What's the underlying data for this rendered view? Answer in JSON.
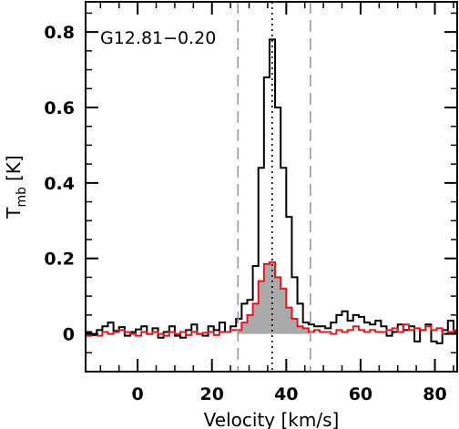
{
  "chart_data": {
    "type": "line",
    "annotation": "G12.81−0.20",
    "xlabel": "Velocity [km/s]",
    "ylabel_main": "T",
    "ylabel_sub": "mb",
    "ylabel_unit": "[K]",
    "xlim": [
      -14,
      86
    ],
    "ylim": [
      -0.1,
      0.88
    ],
    "x_ticks": [
      {
        "value": 0,
        "label": "0"
      },
      {
        "value": 20,
        "label": "20"
      },
      {
        "value": 40,
        "label": "40"
      },
      {
        "value": 60,
        "label": "60"
      },
      {
        "value": 80,
        "label": "80"
      }
    ],
    "y_ticks": [
      {
        "value": 0,
        "label": "0"
      },
      {
        "value": 0.2,
        "label": "0.2"
      },
      {
        "value": 0.4,
        "label": "0.4"
      },
      {
        "value": 0.6,
        "label": "0.6"
      },
      {
        "value": 0.8,
        "label": "0.8"
      }
    ],
    "x_minor_step": 5,
    "y_minor_step": 0.05,
    "vlines": [
      {
        "x": 27,
        "style": "dashed",
        "color": "#999999"
      },
      {
        "x": 36.2,
        "style": "dotted",
        "color": "#000000"
      },
      {
        "x": 46.5,
        "style": "dashed",
        "color": "#999999"
      }
    ],
    "bin_width": 1.5,
    "series": [
      {
        "color": "#000000",
        "start": -14,
        "values": [
          0.005,
          -0.003,
          0.01,
          0.02,
          0.03,
          0.008,
          0.018,
          -0.005,
          0.005,
          0.012,
          0.02,
          0.0,
          0.015,
          -0.01,
          0.005,
          0.02,
          -0.005,
          -0.01,
          0.01,
          0.025,
          0.0,
          -0.005,
          0.02,
          0.01,
          0.03,
          0.005,
          0.02,
          0.04,
          0.08,
          0.09,
          0.18,
          0.44,
          0.68,
          0.78,
          0.6,
          0.44,
          0.31,
          0.15,
          0.08,
          0.03,
          0.025,
          0.02,
          0.02,
          0.015,
          0.03,
          0.05,
          0.06,
          0.035,
          0.05,
          0.045,
          0.03,
          0.025,
          0.035,
          0.02,
          -0.005,
          0.005,
          0.025,
          0.01,
          0.02,
          -0.02,
          0.01,
          0.025,
          -0.02,
          -0.025,
          0.01,
          0.035,
          0.005
        ]
      },
      {
        "color": "#e8141e",
        "fill": "#aaaaaa",
        "fill_range": [
          27,
          46.5
        ],
        "start": -14,
        "values": [
          -0.005,
          0.0,
          -0.005,
          0.005,
          0.0,
          0.005,
          0.01,
          0.005,
          0.0,
          -0.005,
          0.005,
          0.0,
          0.005,
          0.0,
          -0.005,
          0.005,
          0.0,
          0.005,
          -0.003,
          0.005,
          0.0,
          0.003,
          0.005,
          -0.003,
          0.005,
          0.005,
          0.01,
          0.01,
          0.03,
          0.05,
          0.08,
          0.14,
          0.185,
          0.19,
          0.15,
          0.12,
          0.07,
          0.04,
          0.02,
          0.015,
          0.005,
          0.01,
          0.005,
          0.005,
          0.0,
          0.01,
          0.005,
          0.01,
          0.02,
          0.01,
          0.005,
          0.01,
          0.005,
          0.005,
          0.01,
          0.015,
          0.005,
          0.025,
          0.01,
          0.015,
          0.01,
          0.02,
          0.01,
          0.015,
          0.0,
          0.005,
          0.01
        ]
      }
    ]
  }
}
